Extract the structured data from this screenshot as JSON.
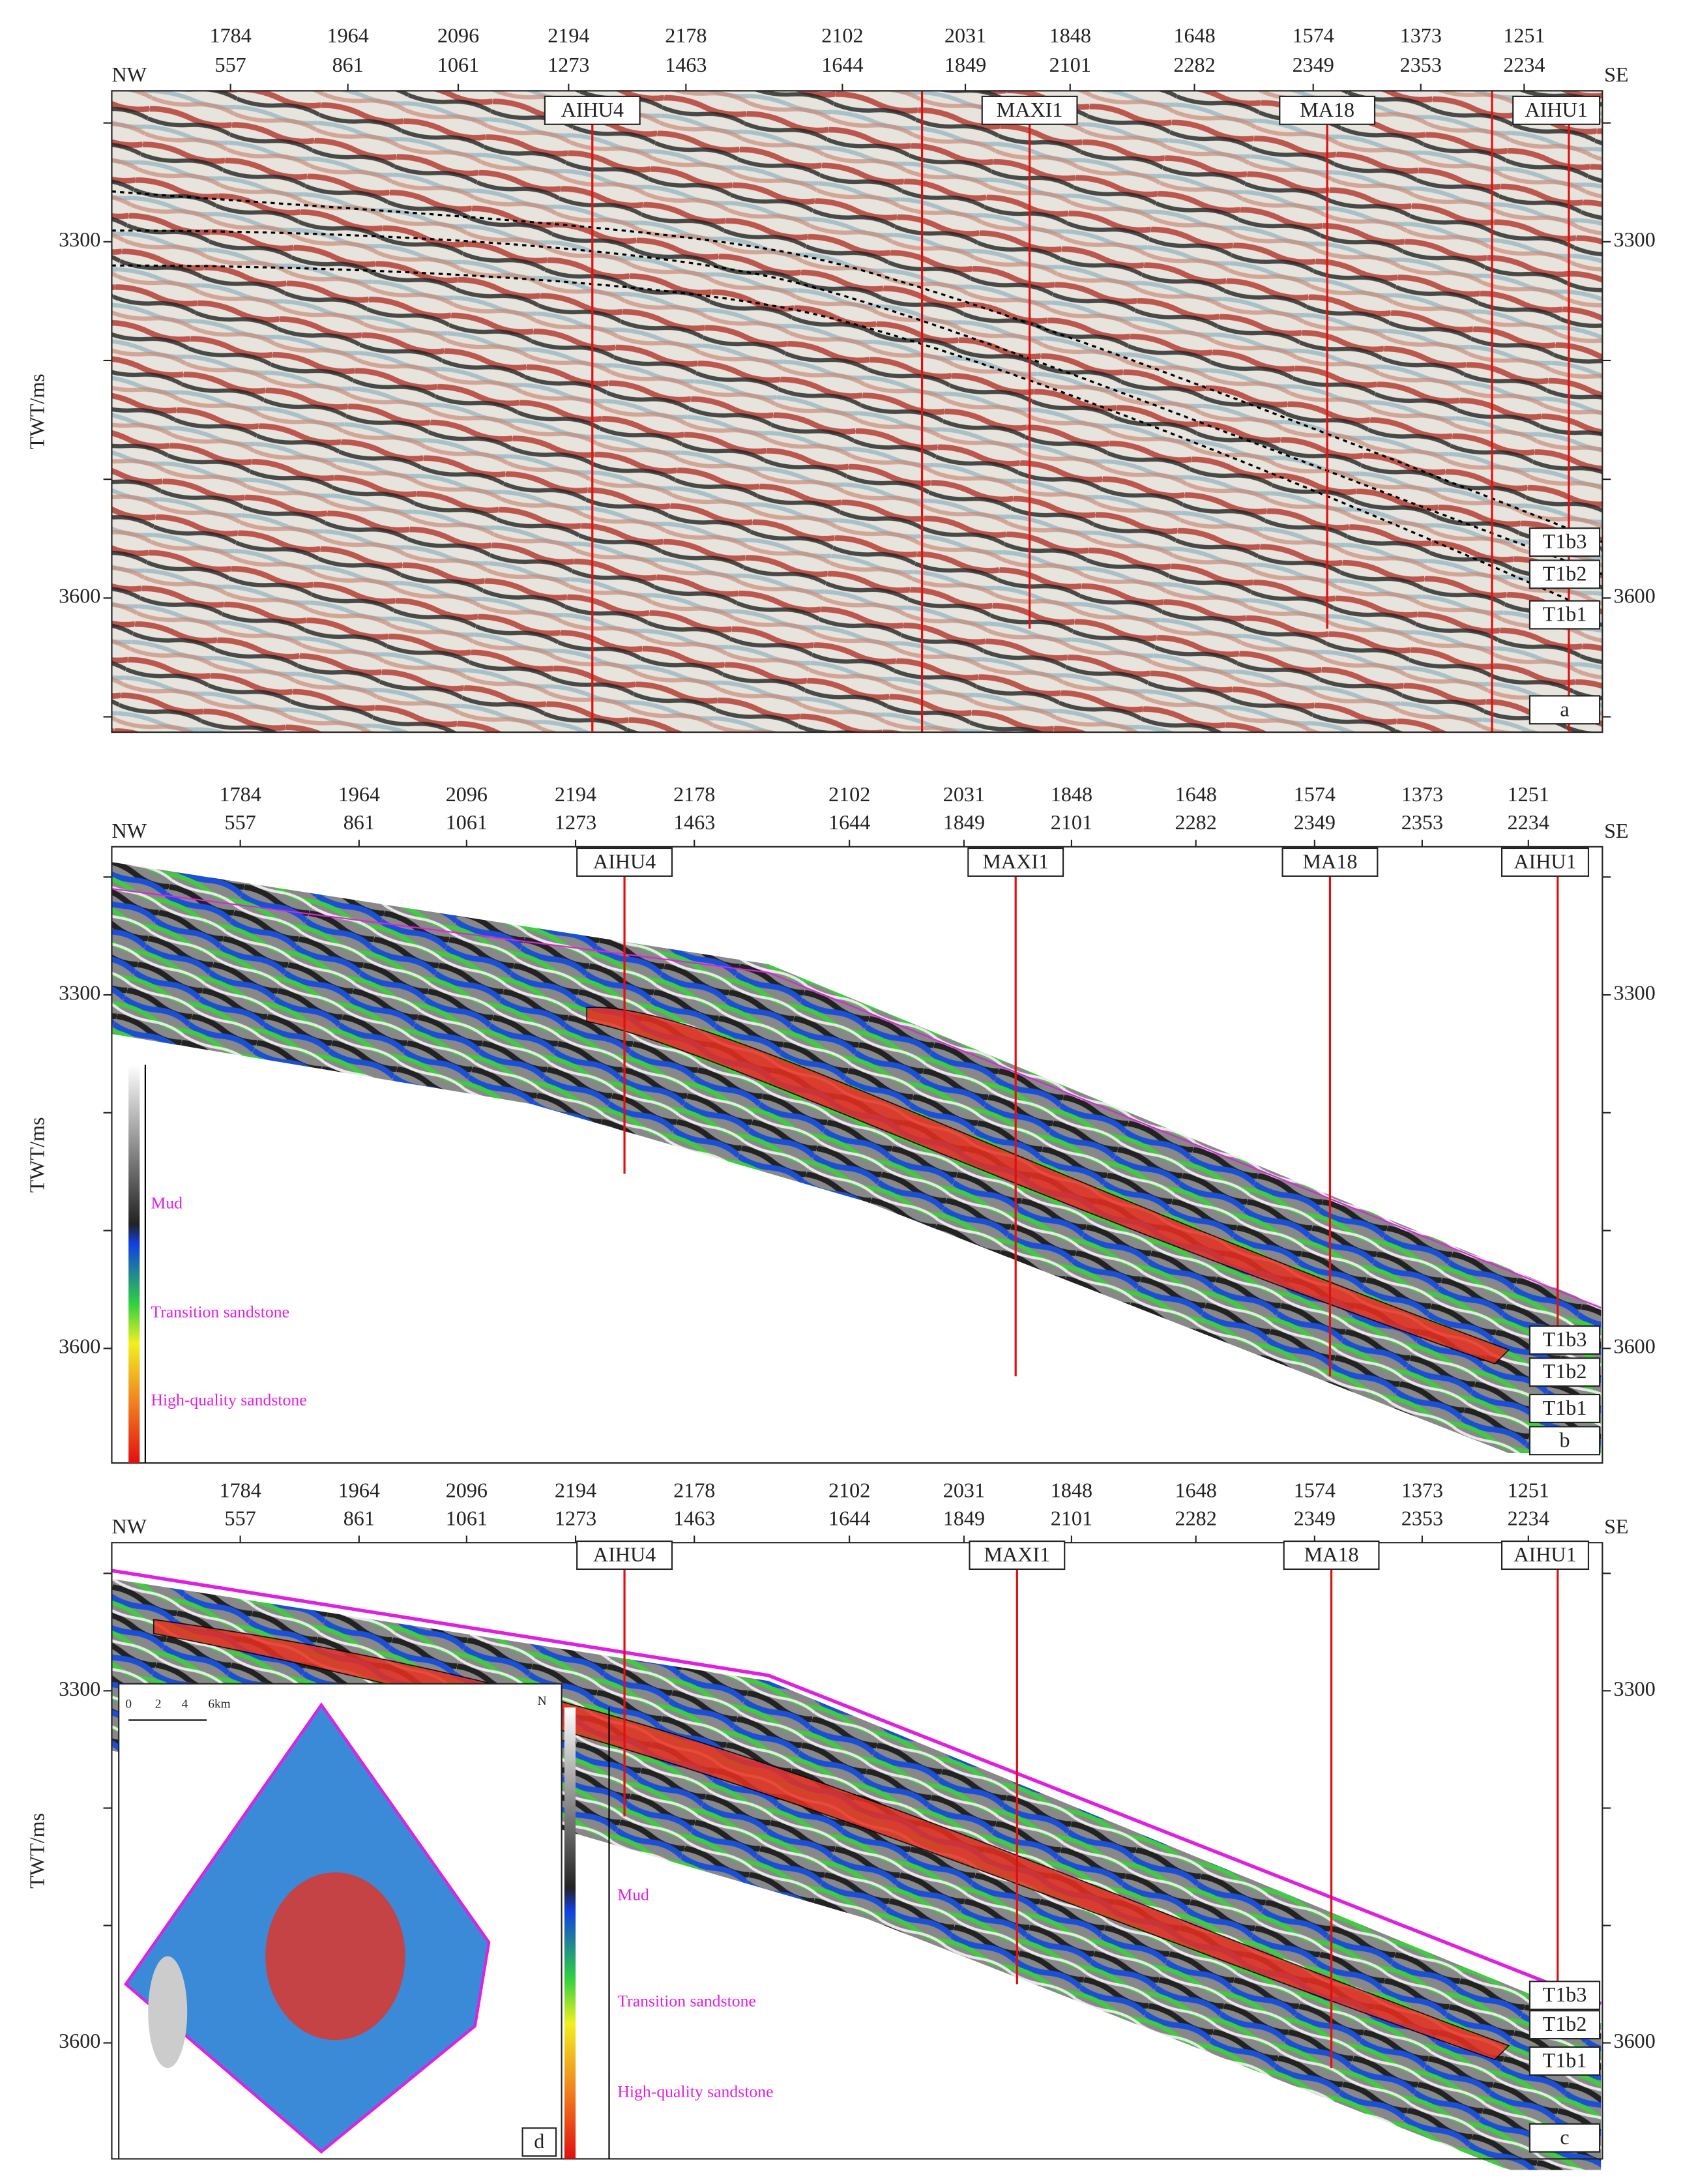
{
  "panels": [
    {
      "label": "a",
      "left_end": "NW",
      "right_end": "SE",
      "y_axis_title": "TWT/ms",
      "trace_labels": [
        {
          "top": "1784",
          "bottom": "557"
        },
        {
          "top": "1964",
          "bottom": "861"
        },
        {
          "top": "2096",
          "bottom": "1061"
        },
        {
          "top": "2194",
          "bottom": "1273"
        },
        {
          "top": "2178",
          "bottom": "1463"
        },
        {
          "top": "2102",
          "bottom": "1644"
        },
        {
          "top": "2031",
          "bottom": "1849"
        },
        {
          "top": "1848",
          "bottom": "2101"
        },
        {
          "top": "1648",
          "bottom": "2282"
        },
        {
          "top": "1574",
          "bottom": "2349"
        },
        {
          "top": "1373",
          "bottom": "2353"
        },
        {
          "top": "1251",
          "bottom": "2234"
        }
      ],
      "yticks": [
        "3300",
        "3600"
      ],
      "wells": [
        "AIHU4",
        "MAXI1",
        "MA18",
        "AIHU1"
      ],
      "horizons": [
        "T1b3",
        "T1b2",
        "T1b1"
      ]
    },
    {
      "label": "b",
      "left_end": "NW",
      "right_end": "SE",
      "y_axis_title": "TWT/ms",
      "trace_labels": [
        {
          "top": "1784",
          "bottom": "557"
        },
        {
          "top": "1964",
          "bottom": "861"
        },
        {
          "top": "2096",
          "bottom": "1061"
        },
        {
          "top": "2194",
          "bottom": "1273"
        },
        {
          "top": "2178",
          "bottom": "1463"
        },
        {
          "top": "2102",
          "bottom": "1644"
        },
        {
          "top": "2031",
          "bottom": "1849"
        },
        {
          "top": "1848",
          "bottom": "2101"
        },
        {
          "top": "1648",
          "bottom": "2282"
        },
        {
          "top": "1574",
          "bottom": "2349"
        },
        {
          "top": "1373",
          "bottom": "2353"
        },
        {
          "top": "1251",
          "bottom": "2234"
        }
      ],
      "yticks": [
        "3300",
        "3600"
      ],
      "wells": [
        "AIHU4",
        "MAXI1",
        "MA18",
        "AIHU1"
      ],
      "horizons": [
        "T1b3",
        "T1b2",
        "T1b1"
      ],
      "legend": [
        "Mud",
        "Transition sandstone",
        "High-quality sandstone"
      ]
    },
    {
      "label": "c",
      "left_end": "NW",
      "right_end": "SE",
      "y_axis_title": "TWT/ms",
      "trace_labels": [
        {
          "top": "1784",
          "bottom": "557"
        },
        {
          "top": "1964",
          "bottom": "861"
        },
        {
          "top": "2096",
          "bottom": "1061"
        },
        {
          "top": "2194",
          "bottom": "1273"
        },
        {
          "top": "2178",
          "bottom": "1463"
        },
        {
          "top": "2102",
          "bottom": "1644"
        },
        {
          "top": "2031",
          "bottom": "1849"
        },
        {
          "top": "1848",
          "bottom": "2101"
        },
        {
          "top": "1648",
          "bottom": "2282"
        },
        {
          "top": "1574",
          "bottom": "2349"
        },
        {
          "top": "1373",
          "bottom": "2353"
        },
        {
          "top": "1251",
          "bottom": "2234"
        }
      ],
      "yticks": [
        "3300",
        "3600"
      ],
      "wells": [
        "AIHU4",
        "MAXI1",
        "MA18",
        "AIHU1"
      ],
      "horizons": [
        "T1b3",
        "T1b2",
        "T1b1"
      ],
      "inset": {
        "label": "d",
        "scale": [
          "0",
          "2",
          "4",
          "6km"
        ],
        "north": "N",
        "legend": [
          "Mud",
          "Transition sandstone",
          "High-quality sandstone"
        ]
      }
    }
  ]
}
